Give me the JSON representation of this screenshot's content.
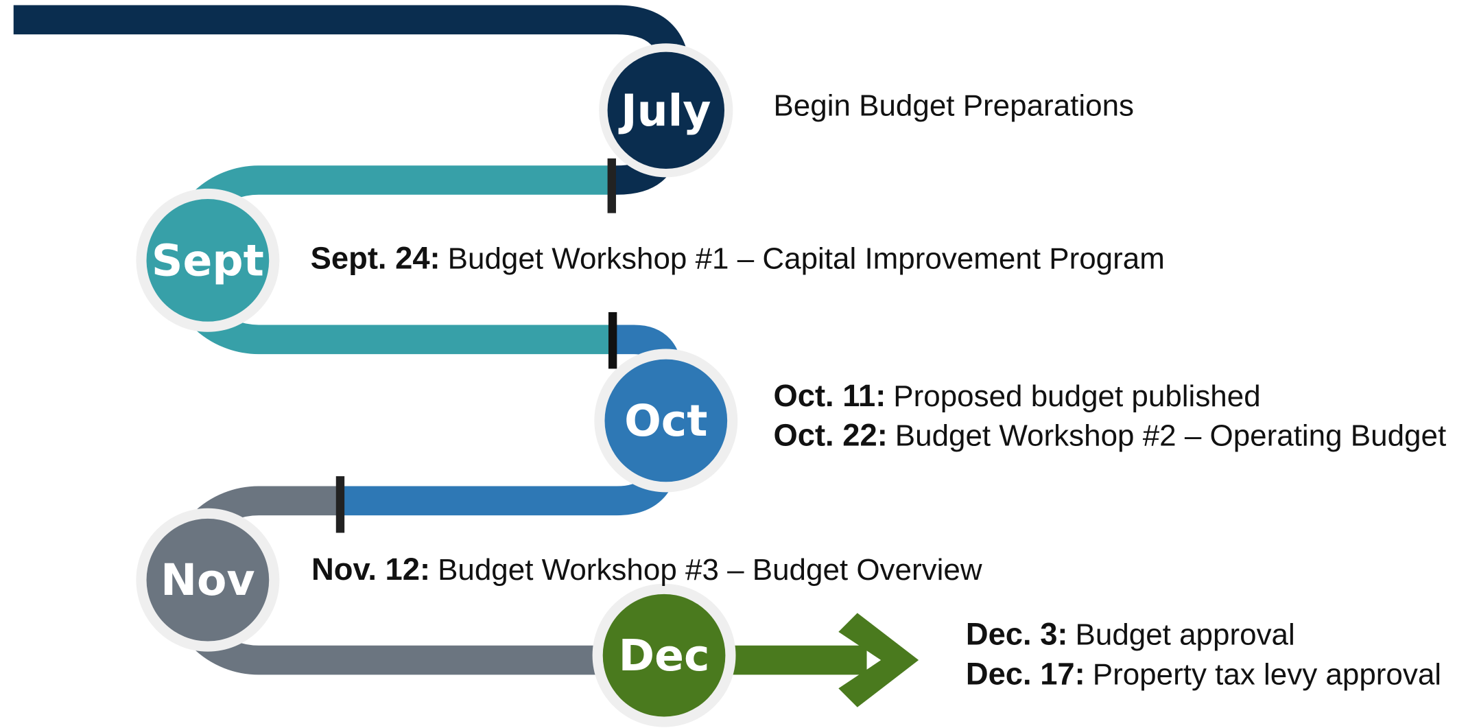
{
  "milestones": [
    {
      "month": "July",
      "events": [
        {
          "text": "Begin Budget Preparations"
        }
      ]
    },
    {
      "month": "Sept",
      "events": [
        {
          "date": "Sept. 24:",
          "text": "Budget Workshop #1 – Capital Improvement Program"
        }
      ]
    },
    {
      "month": "Oct",
      "events": [
        {
          "date": "Oct. 11:",
          "text": "Proposed budget published"
        },
        {
          "date": "Oct. 22:",
          "text": "Budget Workshop #2 – Operating Budget"
        }
      ]
    },
    {
      "month": "Nov",
      "events": [
        {
          "date": "Nov. 12:",
          "text": "Budget Workshop #3 – Budget Overview"
        }
      ]
    },
    {
      "month": "Dec",
      "events": [
        {
          "date": "Dec. 3:",
          "text": "Budget approval"
        },
        {
          "date": "Dec. 17:",
          "text": "Property tax levy approval"
        }
      ]
    }
  ]
}
